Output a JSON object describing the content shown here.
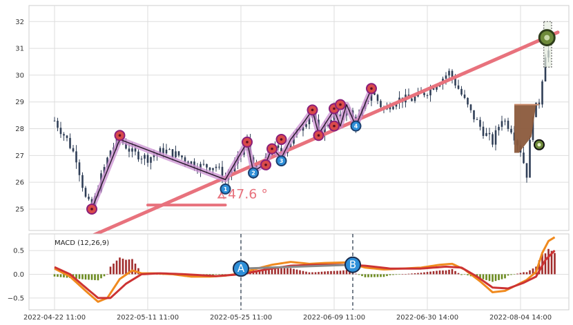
{
  "chart_data": [
    {
      "type": "candlestick",
      "panel": "price",
      "xlabel": "",
      "ylabel": "",
      "ylim": [
        24.2,
        32.6
      ],
      "yticks": [
        25,
        26,
        27,
        28,
        29,
        30,
        31,
        32
      ],
      "x_tick_labels": [
        "2022-04-22 11:00",
        "2022-05-11 11:00",
        "2022-05-25 11:00",
        "2022-06-09 11:00",
        "2022-06-30 14:00",
        "2022-08-04 14:00"
      ],
      "x_tick_positions": [
        0,
        30,
        60,
        90,
        120,
        150
      ],
      "bar_count": 160,
      "grid": true,
      "colors": {
        "candle": "#2f3e56",
        "trend_line": "#e8727d",
        "zigzag_glow": "#c98fd0",
        "zigzag_line": "#2b1b2e",
        "marker_red": "#d94a4a",
        "marker_blue": "#2e8fd8",
        "marker_border": "#8a1f7a"
      },
      "price_keypoints": [
        {
          "x": 0,
          "y": 28.3
        },
        {
          "x": 4,
          "y": 27.6
        },
        {
          "x": 7,
          "y": 26.9
        },
        {
          "x": 10,
          "y": 25.4
        },
        {
          "x": 12,
          "y": 25.0
        },
        {
          "x": 15,
          "y": 26.2
        },
        {
          "x": 18,
          "y": 27.2
        },
        {
          "x": 21,
          "y": 27.6
        },
        {
          "x": 25,
          "y": 27.1
        },
        {
          "x": 30,
          "y": 26.9
        },
        {
          "x": 35,
          "y": 27.2
        },
        {
          "x": 40,
          "y": 27.0
        },
        {
          "x": 46,
          "y": 26.6
        },
        {
          "x": 52,
          "y": 26.6
        },
        {
          "x": 55,
          "y": 26.1
        },
        {
          "x": 58,
          "y": 26.6
        },
        {
          "x": 62,
          "y": 27.5
        },
        {
          "x": 64,
          "y": 26.4
        },
        {
          "x": 68,
          "y": 26.8
        },
        {
          "x": 70,
          "y": 27.3
        },
        {
          "x": 73,
          "y": 27.1
        },
        {
          "x": 76,
          "y": 27.5
        },
        {
          "x": 80,
          "y": 28.2
        },
        {
          "x": 83,
          "y": 28.6
        },
        {
          "x": 85,
          "y": 27.8
        },
        {
          "x": 88,
          "y": 28.2
        },
        {
          "x": 90,
          "y": 28.7
        },
        {
          "x": 92,
          "y": 28.3
        },
        {
          "x": 94,
          "y": 28.8
        },
        {
          "x": 97,
          "y": 28.2
        },
        {
          "x": 99,
          "y": 28.6
        },
        {
          "x": 102,
          "y": 29.4
        },
        {
          "x": 106,
          "y": 28.7
        },
        {
          "x": 110,
          "y": 29.1
        },
        {
          "x": 115,
          "y": 29.1
        },
        {
          "x": 120,
          "y": 29.4
        },
        {
          "x": 124,
          "y": 29.8
        },
        {
          "x": 127,
          "y": 30.1
        },
        {
          "x": 130,
          "y": 29.5
        },
        {
          "x": 134,
          "y": 28.6
        },
        {
          "x": 138,
          "y": 27.9
        },
        {
          "x": 141,
          "y": 27.5
        },
        {
          "x": 144,
          "y": 28.4
        },
        {
          "x": 147,
          "y": 28.0
        },
        {
          "x": 150,
          "y": 27.2
        },
        {
          "x": 152,
          "y": 26.3
        },
        {
          "x": 154,
          "y": 28.6
        },
        {
          "x": 156,
          "y": 29.0
        },
        {
          "x": 158,
          "y": 30.8
        },
        {
          "x": 160,
          "y": 31.0
        }
      ],
      "trend_line": {
        "x1": 12,
        "y1": 24.0,
        "x2": 162,
        "y2": 31.6
      },
      "angle_annotation": {
        "text": "∡47.6 °",
        "x": 52,
        "y": 25.4
      },
      "angle_base_line": {
        "x1": 30,
        "x2": 55,
        "y": 25.15
      },
      "zigzag": [
        {
          "x": 12,
          "y": 25.0
        },
        {
          "x": 21,
          "y": 27.6
        },
        {
          "x": 55,
          "y": 26.1
        },
        {
          "x": 62,
          "y": 27.5
        },
        {
          "x": 64,
          "y": 26.4
        },
        {
          "x": 68,
          "y": 26.7
        },
        {
          "x": 70,
          "y": 27.3
        },
        {
          "x": 73,
          "y": 26.9
        },
        {
          "x": 76,
          "y": 27.6
        },
        {
          "x": 80,
          "y": 28.2
        },
        {
          "x": 83,
          "y": 28.7
        },
        {
          "x": 85,
          "y": 27.8
        },
        {
          "x": 90,
          "y": 28.7
        },
        {
          "x": 92,
          "y": 28.1
        },
        {
          "x": 94,
          "y": 28.9
        },
        {
          "x": 97,
          "y": 28.1
        },
        {
          "x": 102,
          "y": 29.5
        }
      ],
      "markers": [
        {
          "x": 12,
          "y": 25.0,
          "color": "red",
          "label": ""
        },
        {
          "x": 21,
          "y": 27.75,
          "color": "red",
          "label": ""
        },
        {
          "x": 55,
          "y": 25.75,
          "color": "blue",
          "label": "1"
        },
        {
          "x": 62,
          "y": 27.5,
          "color": "red",
          "label": ""
        },
        {
          "x": 64,
          "y": 26.35,
          "color": "blue",
          "label": "2"
        },
        {
          "x": 68,
          "y": 26.65,
          "color": "red",
          "label": ""
        },
        {
          "x": 70,
          "y": 27.25,
          "color": "red",
          "label": ""
        },
        {
          "x": 73,
          "y": 26.8,
          "color": "blue",
          "label": "3"
        },
        {
          "x": 73,
          "y": 27.6,
          "color": "red",
          "label": ""
        },
        {
          "x": 83,
          "y": 28.7,
          "color": "red",
          "label": ""
        },
        {
          "x": 85,
          "y": 27.75,
          "color": "red",
          "label": ""
        },
        {
          "x": 90,
          "y": 28.1,
          "color": "red",
          "label": ""
        },
        {
          "x": 90,
          "y": 28.75,
          "color": "red",
          "label": ""
        },
        {
          "x": 92,
          "y": 28.9,
          "color": "red",
          "label": ""
        },
        {
          "x": 97,
          "y": 28.1,
          "color": "blue",
          "label": "4"
        },
        {
          "x": 102,
          "y": 29.5,
          "color": "red",
          "label": ""
        }
      ],
      "end_marker": {
        "x": 158.5,
        "y": 31.4,
        "color": "#6e8a3a"
      },
      "small_marker": {
        "x": 156,
        "y": 27.4,
        "color": "#6e8a3a"
      },
      "brown_box": {
        "x1": 148,
        "x2": 155,
        "y_top": 28.9,
        "y_bottom": 27.1,
        "color": "#8b5a3c"
      },
      "gray_box": {
        "x1": 157.5,
        "x2": 160,
        "y_top": 32.0,
        "y_bottom": 30.3
      }
    },
    {
      "type": "macd",
      "panel": "indicator",
      "title": "MACD (12,26,9)",
      "ylim": [
        -0.75,
        0.85
      ],
      "yticks": [
        -0.5,
        0.0,
        0.5
      ],
      "ytick_labels": [
        "−0.5",
        "0.0",
        "0.5"
      ],
      "grid": true,
      "colors": {
        "macd_line": "#f08a1e",
        "signal_line": "#cc3333",
        "hist_pos": "#a02b2b",
        "hist_neg": "#6b8a1f",
        "ab_line": "#888888",
        "ab_marker": "#2e8fd8",
        "vline": "#556070"
      },
      "macd_keypoints": [
        {
          "x": 0,
          "y": 0.12
        },
        {
          "x": 5,
          "y": -0.05
        },
        {
          "x": 10,
          "y": -0.35
        },
        {
          "x": 14,
          "y": -0.58
        },
        {
          "x": 17,
          "y": -0.5
        },
        {
          "x": 21,
          "y": -0.1
        },
        {
          "x": 25,
          "y": 0.08
        },
        {
          "x": 28,
          "y": 0.02
        },
        {
          "x": 32,
          "y": 0.02
        },
        {
          "x": 38,
          "y": 0.0
        },
        {
          "x": 44,
          "y": -0.05
        },
        {
          "x": 50,
          "y": -0.05
        },
        {
          "x": 55,
          "y": -0.03
        },
        {
          "x": 60,
          "y": 0.02
        },
        {
          "x": 64,
          "y": 0.1
        },
        {
          "x": 70,
          "y": 0.2
        },
        {
          "x": 76,
          "y": 0.26
        },
        {
          "x": 82,
          "y": 0.22
        },
        {
          "x": 88,
          "y": 0.24
        },
        {
          "x": 94,
          "y": 0.25
        },
        {
          "x": 100,
          "y": 0.14
        },
        {
          "x": 106,
          "y": 0.1
        },
        {
          "x": 112,
          "y": 0.12
        },
        {
          "x": 118,
          "y": 0.14
        },
        {
          "x": 124,
          "y": 0.2
        },
        {
          "x": 128,
          "y": 0.22
        },
        {
          "x": 132,
          "y": 0.1
        },
        {
          "x": 137,
          "y": -0.15
        },
        {
          "x": 141,
          "y": -0.38
        },
        {
          "x": 145,
          "y": -0.35
        },
        {
          "x": 149,
          "y": -0.22
        },
        {
          "x": 152,
          "y": -0.12
        },
        {
          "x": 155,
          "y": 0.05
        },
        {
          "x": 157,
          "y": 0.45
        },
        {
          "x": 159,
          "y": 0.7
        },
        {
          "x": 161,
          "y": 0.78
        }
      ],
      "signal_keypoints": [
        {
          "x": 0,
          "y": 0.15
        },
        {
          "x": 5,
          "y": 0.0
        },
        {
          "x": 10,
          "y": -0.28
        },
        {
          "x": 14,
          "y": -0.5
        },
        {
          "x": 18,
          "y": -0.5
        },
        {
          "x": 23,
          "y": -0.2
        },
        {
          "x": 28,
          "y": 0.0
        },
        {
          "x": 34,
          "y": 0.02
        },
        {
          "x": 42,
          "y": 0.0
        },
        {
          "x": 52,
          "y": -0.04
        },
        {
          "x": 60,
          "y": 0.0
        },
        {
          "x": 68,
          "y": 0.1
        },
        {
          "x": 76,
          "y": 0.18
        },
        {
          "x": 84,
          "y": 0.2
        },
        {
          "x": 92,
          "y": 0.2
        },
        {
          "x": 100,
          "y": 0.18
        },
        {
          "x": 108,
          "y": 0.12
        },
        {
          "x": 118,
          "y": 0.12
        },
        {
          "x": 126,
          "y": 0.16
        },
        {
          "x": 131,
          "y": 0.14
        },
        {
          "x": 136,
          "y": -0.05
        },
        {
          "x": 141,
          "y": -0.28
        },
        {
          "x": 146,
          "y": -0.3
        },
        {
          "x": 151,
          "y": -0.18
        },
        {
          "x": 155,
          "y": -0.05
        },
        {
          "x": 158,
          "y": 0.3
        },
        {
          "x": 161,
          "y": 0.5
        }
      ],
      "ab_points": [
        {
          "label": "A",
          "x": 60,
          "y": 0.12
        },
        {
          "label": "B",
          "x": 96,
          "y": 0.2
        }
      ]
    }
  ]
}
